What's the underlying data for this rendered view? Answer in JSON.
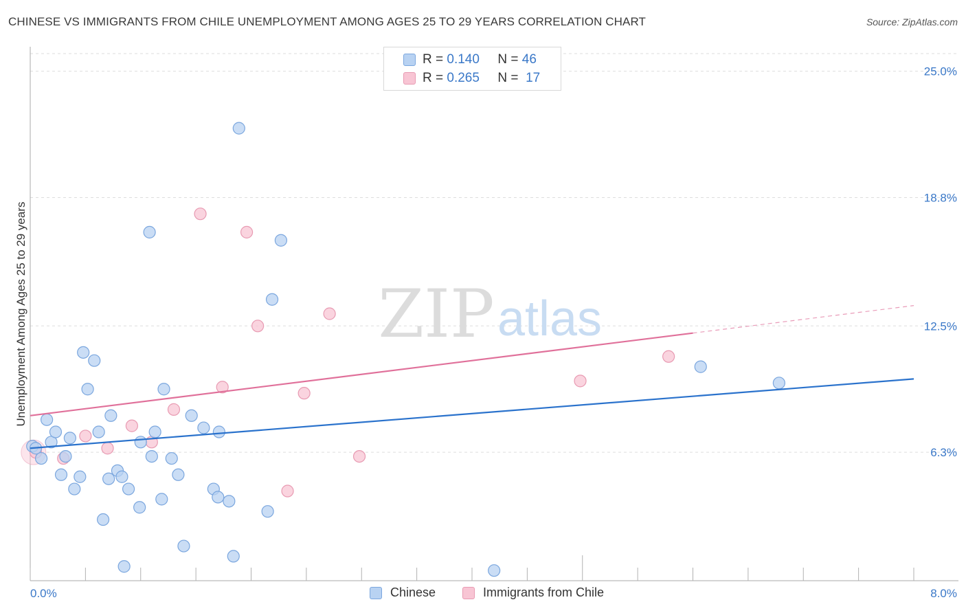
{
  "header": {
    "title": "CHINESE VS IMMIGRANTS FROM CHILE UNEMPLOYMENT AMONG AGES 25 TO 29 YEARS CORRELATION CHART",
    "source": "Source: ZipAtlas.com"
  },
  "watermark": {
    "zip": "ZIP",
    "atlas": "atlas"
  },
  "colors": {
    "chinese_fill": "#b8d2f2",
    "chinese_stroke": "#7aa6de",
    "chinese_line": "#2a72cc",
    "chile_fill": "#f8c5d4",
    "chile_stroke": "#e89ab2",
    "chile_line": "#e0709a",
    "axis_label": "#3a78c8",
    "grid": "#dddddd"
  },
  "legend_top": {
    "rows": [
      {
        "r_label": "R =",
        "r_value": "0.140",
        "n_label": "N =",
        "n_value": "46"
      },
      {
        "r_label": "R =",
        "r_value": "0.265",
        "n_label": "N =",
        "n_value": "17"
      }
    ]
  },
  "legend_bottom": {
    "items": [
      "Chinese",
      "Immigrants from Chile"
    ]
  },
  "chart_data": {
    "type": "scatter",
    "title": "CHINESE VS IMMIGRANTS FROM CHILE UNEMPLOYMENT AMONG AGES 25 TO 29 YEARS CORRELATION CHART",
    "xlabel": "",
    "ylabel": "Unemployment Among Ages 25 to 29 years",
    "xlim": [
      0,
      8
    ],
    "ylim": [
      0,
      26.2
    ],
    "x_tick_labels": [
      "0.0%",
      "8.0%"
    ],
    "y_ticks": [
      6.3,
      12.5,
      18.8,
      25.0
    ],
    "y_tick_labels": [
      "6.3%",
      "12.5%",
      "18.8%",
      "25.0%"
    ],
    "grid": true,
    "legend_position": "top-center",
    "series": [
      {
        "name": "Chinese",
        "r": 0.14,
        "n": 46,
        "trend": {
          "x": [
            0,
            8
          ],
          "y": [
            6.5,
            9.9
          ],
          "dashed_from": null
        },
        "points": [
          [
            0.02,
            6.6
          ],
          [
            0.05,
            6.5
          ],
          [
            0.1,
            6.0
          ],
          [
            0.15,
            7.9
          ],
          [
            0.19,
            6.8
          ],
          [
            0.23,
            7.3
          ],
          [
            0.28,
            5.2
          ],
          [
            0.32,
            6.1
          ],
          [
            0.36,
            7.0
          ],
          [
            0.4,
            4.5
          ],
          [
            0.45,
            5.1
          ],
          [
            0.48,
            11.2
          ],
          [
            0.52,
            9.4
          ],
          [
            0.58,
            10.8
          ],
          [
            0.62,
            7.3
          ],
          [
            0.66,
            3.0
          ],
          [
            0.71,
            5.0
          ],
          [
            0.73,
            8.1
          ],
          [
            0.79,
            5.4
          ],
          [
            0.83,
            5.1
          ],
          [
            0.85,
            0.7
          ],
          [
            0.89,
            4.5
          ],
          [
            0.99,
            3.6
          ],
          [
            1.0,
            6.8
          ],
          [
            1.08,
            17.1
          ],
          [
            1.1,
            6.1
          ],
          [
            1.13,
            7.3
          ],
          [
            1.19,
            4.0
          ],
          [
            1.21,
            9.4
          ],
          [
            1.28,
            6.0
          ],
          [
            1.34,
            5.2
          ],
          [
            1.39,
            1.7
          ],
          [
            1.46,
            8.1
          ],
          [
            1.57,
            7.5
          ],
          [
            1.66,
            4.5
          ],
          [
            1.7,
            4.1
          ],
          [
            1.71,
            7.3
          ],
          [
            1.8,
            3.9
          ],
          [
            1.84,
            1.2
          ],
          [
            1.89,
            22.2
          ],
          [
            2.15,
            3.4
          ],
          [
            2.19,
            13.8
          ],
          [
            2.27,
            16.7
          ],
          [
            4.2,
            0.5
          ],
          [
            6.07,
            10.5
          ],
          [
            6.78,
            9.7
          ]
        ]
      },
      {
        "name": "Immigrants from Chile",
        "r": 0.265,
        "n": 17,
        "trend": {
          "x": [
            0,
            8
          ],
          "y": [
            8.1,
            13.5
          ],
          "dashed_from": 6.0
        },
        "points": [
          [
            0.05,
            6.3
          ],
          [
            0.3,
            6.0
          ],
          [
            0.5,
            7.1
          ],
          [
            0.7,
            6.5
          ],
          [
            0.92,
            7.6
          ],
          [
            1.1,
            6.8
          ],
          [
            1.3,
            8.4
          ],
          [
            1.54,
            18.0
          ],
          [
            1.74,
            9.5
          ],
          [
            1.96,
            17.1
          ],
          [
            2.06,
            12.5
          ],
          [
            2.33,
            4.4
          ],
          [
            2.48,
            9.2
          ],
          [
            2.71,
            13.1
          ],
          [
            2.98,
            6.1
          ],
          [
            4.98,
            9.8
          ],
          [
            5.78,
            11.0
          ]
        ]
      }
    ]
  }
}
